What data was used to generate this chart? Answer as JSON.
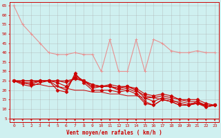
{
  "xlabel": "Vent moyen/en rafales ( km/h )",
  "background_color": "#cff0f0",
  "grid_color": "#aaaaaa",
  "text_color": "#cc0000",
  "xlim": [
    -0.5,
    23.5
  ],
  "ylim": [
    3,
    67
  ],
  "yticks": [
    5,
    10,
    15,
    20,
    25,
    30,
    35,
    40,
    45,
    50,
    55,
    60,
    65
  ],
  "xticks": [
    0,
    1,
    2,
    3,
    4,
    5,
    6,
    7,
    8,
    9,
    10,
    11,
    12,
    13,
    14,
    15,
    16,
    17,
    18,
    19,
    20,
    21,
    22,
    23
  ],
  "x": [
    0,
    1,
    2,
    3,
    4,
    5,
    6,
    7,
    8,
    9,
    10,
    11,
    12,
    13,
    14,
    15,
    16,
    17,
    18,
    19,
    20,
    21,
    22,
    23
  ],
  "line_light": [
    65,
    55,
    50,
    45,
    40,
    39,
    39,
    40,
    39,
    39,
    30,
    47,
    30,
    30,
    47,
    30,
    47,
    45,
    41,
    40,
    40,
    41,
    40,
    40
  ],
  "line_a": [
    25,
    24,
    23,
    25,
    25,
    20,
    19,
    29,
    24,
    20,
    20,
    20,
    19,
    20,
    18,
    13,
    12,
    15,
    14,
    12,
    12,
    13,
    12,
    12
  ],
  "line_b": [
    25,
    23,
    22,
    24,
    25,
    22,
    20,
    28,
    25,
    21,
    22,
    22,
    20,
    21,
    19,
    14,
    12,
    15,
    14,
    12,
    12,
    13,
    11,
    12
  ],
  "line_c": [
    25,
    24,
    24,
    25,
    25,
    24,
    22,
    27,
    25,
    22,
    22,
    22,
    21,
    22,
    20,
    16,
    14,
    16,
    15,
    13,
    12,
    14,
    11,
    12
  ],
  "line_d": [
    25,
    25,
    25,
    25,
    25,
    25,
    24,
    26,
    25,
    23,
    22,
    22,
    21,
    22,
    20,
    17,
    16,
    17,
    16,
    15,
    14,
    14,
    12,
    12
  ],
  "line_e": [
    25,
    25,
    25,
    25,
    25,
    25,
    25,
    26,
    25,
    23,
    22,
    23,
    22,
    22,
    21,
    18,
    17,
    18,
    17,
    15,
    15,
    15,
    13,
    12
  ],
  "line_straight": [
    25,
    24,
    23,
    23,
    22,
    22,
    21,
    20,
    20,
    19,
    19,
    18,
    18,
    17,
    17,
    16,
    16,
    15,
    14,
    14,
    13,
    13,
    12,
    12
  ],
  "color_light": "#e89090",
  "color_dark": "#cc0000",
  "color_straight": "#cc0000",
  "figsize": [
    3.2,
    2.0
  ],
  "dpi": 100
}
